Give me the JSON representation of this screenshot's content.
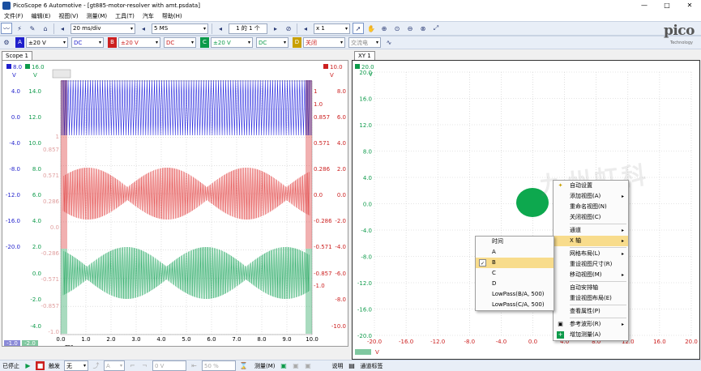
{
  "window": {
    "app_title": "PicoScope 6 Automotive",
    "file_title": "- [gt885-motor-resolver with amt.psdata]",
    "minimize": "—",
    "maximize": "□",
    "close": "✕"
  },
  "menu": [
    "文件(F)",
    "编辑(E)",
    "视图(V)",
    "测量(M)",
    "工具(T)",
    "汽车",
    "帮助(H)"
  ],
  "toolbar": {
    "timebase": "20 ms/div",
    "samples": "5 MS",
    "buffer": "1 的 1 个",
    "zoom": "x 1"
  },
  "channels": [
    {
      "id": "A",
      "range": "±20 V",
      "coupling": "DC",
      "color": "#1f1fcc"
    },
    {
      "id": "B",
      "range": "±20 V",
      "coupling": "DC",
      "color": "#cc2020"
    },
    {
      "id": "C",
      "range": "±20 V",
      "coupling": "DC",
      "color": "#0d9a4a"
    },
    {
      "id": "D",
      "range": "关闭",
      "coupling": "交流电",
      "color": "#c8a000"
    }
  ],
  "logo": {
    "name": "pico",
    "sub": "Technology"
  },
  "scope_tab": "Scope 1",
  "xy_tab": "XY 1",
  "scope": {
    "top_labels": {
      "a": "8.0",
      "c": "16.0",
      "b": "10.0",
      "a_unit": "V",
      "c_unit": "V",
      "b_unit": "V"
    },
    "blue_axis": [
      "4.0",
      "0.0",
      "-4.0",
      "-8.0",
      "-12.0",
      "-16.0",
      "-20.0"
    ],
    "green_axis": [
      "14.0",
      "12.0",
      "10.0",
      "8.0",
      "6.0",
      "4.0",
      "2.0",
      "0.0",
      "-2.0",
      "-4.0"
    ],
    "inner_left": [
      "1",
      "0.857",
      "0.571",
      "0.286",
      "0.0",
      "-0.286",
      "-0.571",
      "-0.857",
      "-1.0"
    ],
    "inner_right": [
      "1",
      "1.0",
      "0.857",
      "0.571",
      "0.286",
      "0.0",
      "-0.286",
      "-0.571",
      "-0.857",
      "-1.0"
    ],
    "red_axis": [
      "8.0",
      "6.0",
      "4.0",
      "2.0",
      "0.0",
      "-2.0",
      "-4.0",
      "-6.0",
      "-8.0",
      "-10.0"
    ],
    "x_ticks": [
      "0.0",
      "1.0",
      "2.0",
      "3.0",
      "4.0",
      "5.0",
      "6.0",
      "7.0",
      "8.0",
      "9.0",
      "10.0"
    ],
    "x_unit": "ms",
    "ruler_badges": [
      "-1.0",
      "-2.0"
    ]
  },
  "xy": {
    "y_label_top": "20.0",
    "y_unit": "V",
    "y_ticks": [
      "20.0",
      "16.0",
      "12.0",
      "8.0",
      "4.0",
      "0.0",
      "-4.0",
      "-8.0",
      "-12.0",
      "-16.0",
      "-20.0"
    ],
    "x_ticks": [
      "-20.0",
      "-16.0",
      "-12.0",
      "-8.0",
      "-4.0",
      "0.0",
      "4.0",
      "8.0",
      "12.0",
      "16.0",
      "20.0"
    ],
    "x_unit": "V"
  },
  "context_menu": {
    "items": [
      "自动设置",
      "添加视图(A)",
      "重命名视图(N)",
      "关闭视图(C)",
      "通道",
      "X 轴",
      "网格布局(L)",
      "重设视图尺寸(R)",
      "移动视图(M)",
      "自动安排轴",
      "重设视图布局(E)",
      "查看属性(P)",
      "参考波形(R)",
      "增加测量(A)"
    ],
    "highlighted": "X 轴"
  },
  "submenu": {
    "items": [
      "时间",
      "A",
      "B",
      "C",
      "D",
      "LowPass(B/A, 500)",
      "LowPass(C/A, 500)"
    ],
    "selected": "B"
  },
  "status": {
    "stopped": "已停止",
    "trigger": "触发",
    "trigger_mode": "无",
    "trigger_channel": "A",
    "trigger_level": "0 V",
    "pretrigger": "50 %",
    "measure": "测量(M)",
    "notes": "说明",
    "channel_labels": "通道标签"
  },
  "watermark": "九州虹科"
}
